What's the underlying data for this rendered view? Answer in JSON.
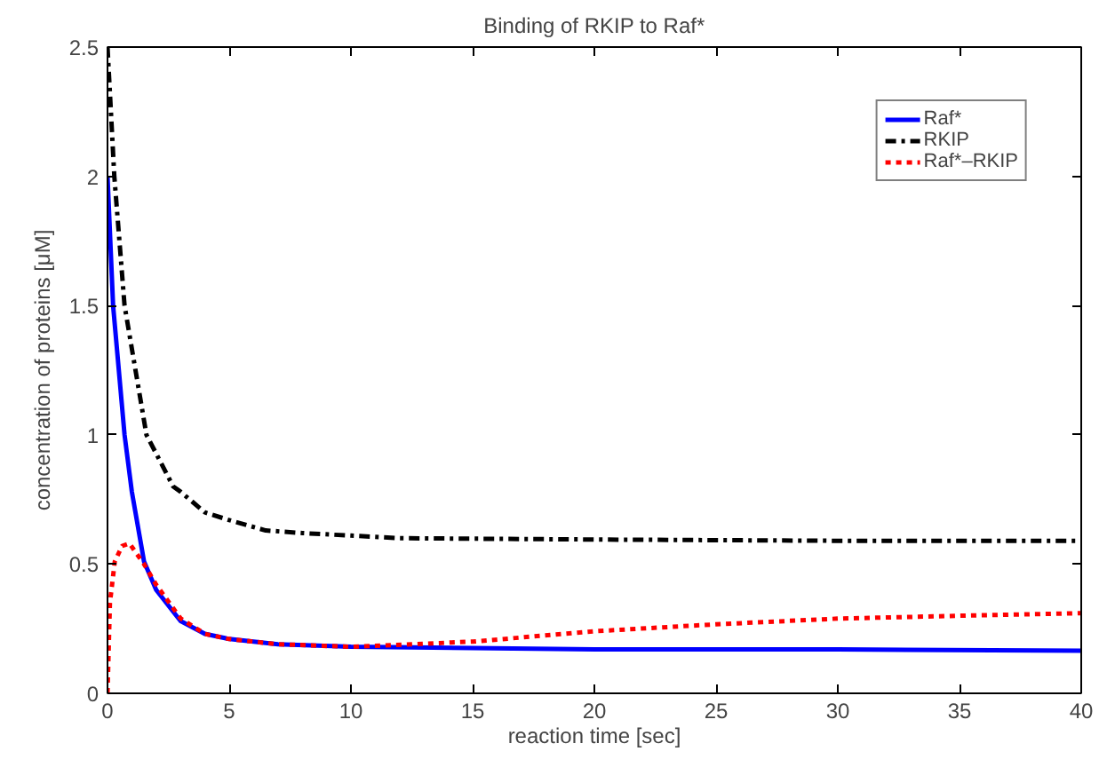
{
  "chart_data": {
    "type": "line",
    "title": "Binding of RKIP to Raf*",
    "xlabel": "reaction time [sec]",
    "ylabel": "concentration of proteins [μM]",
    "xlim": [
      0,
      40
    ],
    "ylim": [
      0,
      2.5
    ],
    "xticks": [
      0,
      5,
      10,
      15,
      20,
      25,
      30,
      35,
      40
    ],
    "yticks": [
      0,
      0.5,
      1,
      1.5,
      2,
      2.5
    ],
    "grid": false,
    "legend": "top right",
    "series": [
      {
        "name": "Raf*",
        "color": "#0000ff",
        "line_style": "solid",
        "x": [
          0,
          0.23,
          0.7,
          1,
          1.5,
          2,
          3,
          4,
          5,
          7,
          10,
          15,
          20,
          30,
          40
        ],
        "values": [
          2.0,
          1.5,
          1.0,
          0.78,
          0.51,
          0.4,
          0.28,
          0.23,
          0.21,
          0.19,
          0.18,
          0.175,
          0.17,
          0.17,
          0.165
        ]
      },
      {
        "name": "RKIP",
        "color": "#000000",
        "line_style": "dashdot",
        "x": [
          0,
          0.28,
          0.7,
          1.6,
          2.7,
          3,
          4,
          5,
          6.5,
          8,
          10,
          12,
          20,
          30,
          40
        ],
        "values": [
          2.5,
          2.0,
          1.5,
          1.0,
          0.8,
          0.78,
          0.7,
          0.67,
          0.63,
          0.62,
          0.61,
          0.6,
          0.595,
          0.59,
          0.59
        ]
      },
      {
        "name": "Raf*–RKIP",
        "color": "#ff0000",
        "line_style": "dotted",
        "x": [
          0,
          0.1,
          0.3,
          0.6,
          0.9,
          1.5,
          2,
          3,
          4,
          5,
          7,
          10,
          15,
          20,
          25,
          30,
          35,
          40
        ],
        "values": [
          0,
          0.35,
          0.51,
          0.57,
          0.58,
          0.5,
          0.42,
          0.29,
          0.23,
          0.21,
          0.19,
          0.18,
          0.2,
          0.24,
          0.267,
          0.289,
          0.3,
          0.31
        ]
      }
    ]
  }
}
